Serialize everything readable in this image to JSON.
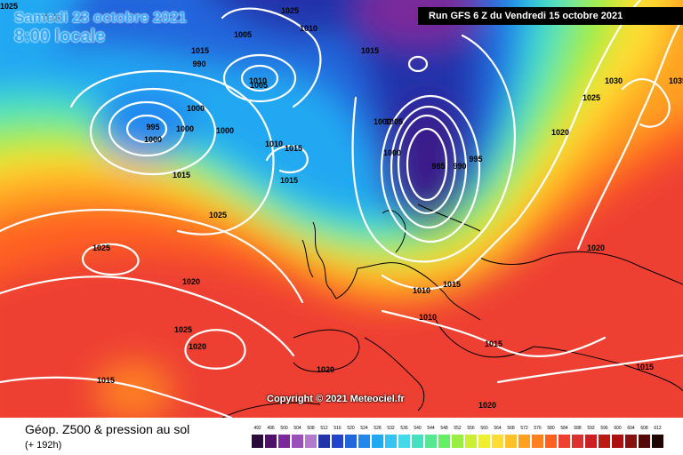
{
  "header": {
    "date": "Samedi 23 octobre 2021",
    "time": "8:00 locale",
    "run": "Run GFS 6 Z du Vendredi 15 octobre 2021"
  },
  "copyright": "Copyright © 2021 Meteociel.fr",
  "footer": {
    "title": "Géop. Z500 & pression au sol",
    "subtitle": "(+ 192h)"
  },
  "legend": {
    "values": [
      "492",
      "496",
      "500",
      "504",
      "508",
      "512",
      "516",
      "520",
      "524",
      "528",
      "532",
      "536",
      "540",
      "544",
      "548",
      "552",
      "556",
      "560",
      "564",
      "568",
      "572",
      "576",
      "580",
      "584",
      "588",
      "592",
      "596",
      "600",
      "604",
      "608",
      "612"
    ],
    "colors": [
      "#2a0a3a",
      "#50106a",
      "#7a2a9a",
      "#9a50b8",
      "#b478cc",
      "#2233aa",
      "#2244cc",
      "#2266dd",
      "#2288ee",
      "#22a8f2",
      "#33c4f2",
      "#44d8e8",
      "#44e0c0",
      "#55e890",
      "#66ee66",
      "#99ee44",
      "#ccee33",
      "#eeee33",
      "#ffdd33",
      "#ffc02a",
      "#ffa020",
      "#ff8020",
      "#ff6020",
      "#ee4030",
      "#dd3030",
      "#cc2020",
      "#bb1818",
      "#aa1010",
      "#881010",
      "#550808",
      "#200404"
    ]
  },
  "isobars": [
    "1025",
    "1020",
    "1005",
    "1010",
    "1015",
    "990",
    "995",
    "1000",
    "1025",
    "1010",
    "1005",
    "1000",
    "1015",
    "1000",
    "1000",
    "1025",
    "1015",
    "1000",
    "1005",
    "1000",
    "1010",
    "985",
    "990",
    "995",
    "1015",
    "1015",
    "1020",
    "1030",
    "1025",
    "1020",
    "1010",
    "1015",
    "1010",
    "1015",
    "1025",
    "1020",
    "1025",
    "1020",
    "1015",
    "1020",
    "1015",
    "1035",
    "1020"
  ]
}
